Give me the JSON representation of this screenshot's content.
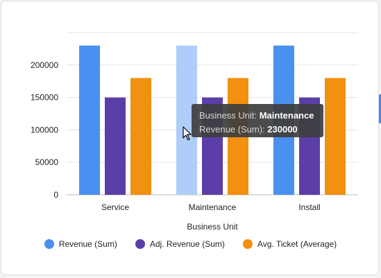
{
  "chart_data": {
    "type": "bar",
    "xlabel": "Business Unit",
    "categories": [
      "Service",
      "Maintenance",
      "Install"
    ],
    "ylim": [
      0,
      250000
    ],
    "yticks": [
      "0",
      "50000",
      "100000",
      "150000",
      "200000"
    ],
    "grid": true,
    "legend_position": "bottom",
    "series": [
      {
        "name": "Revenue (Sum)",
        "color": "#4a90f0",
        "values": [
          230000,
          230000,
          230000
        ]
      },
      {
        "name": "Adj. Revenue (Sum)",
        "color": "#5c3ea8",
        "values": [
          150000,
          150000,
          150000
        ]
      },
      {
        "name": "Avg. Ticket (Average)",
        "color": "#f2900f",
        "values": [
          180000,
          180000,
          180000
        ]
      }
    ],
    "highlight": {
      "series": 0,
      "category": 1,
      "color": "#aecdf9"
    }
  },
  "tooltip": {
    "unit_label": "Business Unit:",
    "unit_value": "Maintenance",
    "measure_label": "Revenue (Sum):",
    "measure_value": "230000"
  }
}
